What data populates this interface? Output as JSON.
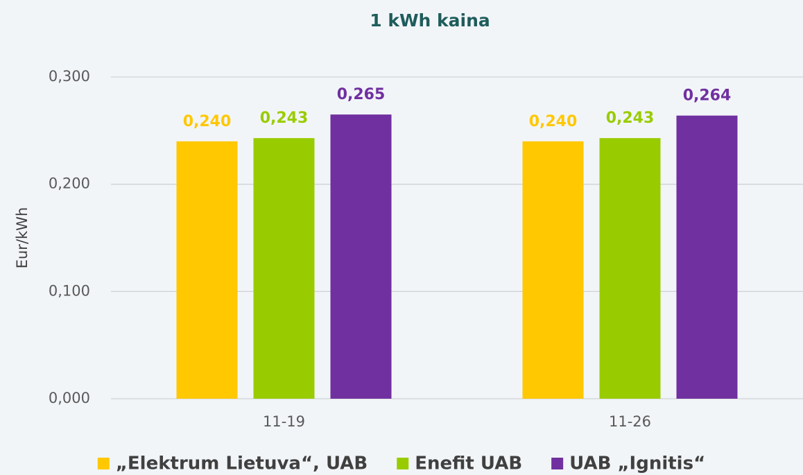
{
  "chart_data": {
    "type": "bar",
    "title": "1 kWh kaina",
    "y_label": "Eur/kWh",
    "categories": [
      "11-19",
      "11-26"
    ],
    "series": [
      {
        "name": "„Elektrum Lietuva“, UAB",
        "color": "#ffc800",
        "values": [
          0.24,
          0.24
        ],
        "value_labels": [
          "0,240",
          "0,240"
        ]
      },
      {
        "name": "Enefit UAB",
        "color": "#99cc00",
        "values": [
          0.243,
          0.243
        ],
        "value_labels": [
          "0,243",
          "0,243"
        ]
      },
      {
        "name": "UAB „Ignitis“",
        "color": "#7030a0",
        "values": [
          0.265,
          0.264
        ],
        "value_labels": [
          "0,265",
          "0,264"
        ]
      }
    ],
    "ylim": [
      0,
      0.3
    ],
    "yticks": [
      {
        "value": 0,
        "label": "0,000"
      },
      {
        "value": 0.1,
        "label": "0,100"
      },
      {
        "value": 0.2,
        "label": "0,200"
      },
      {
        "value": 0.3,
        "label": "0,300"
      }
    ],
    "grid": true,
    "legend": "bottom"
  }
}
